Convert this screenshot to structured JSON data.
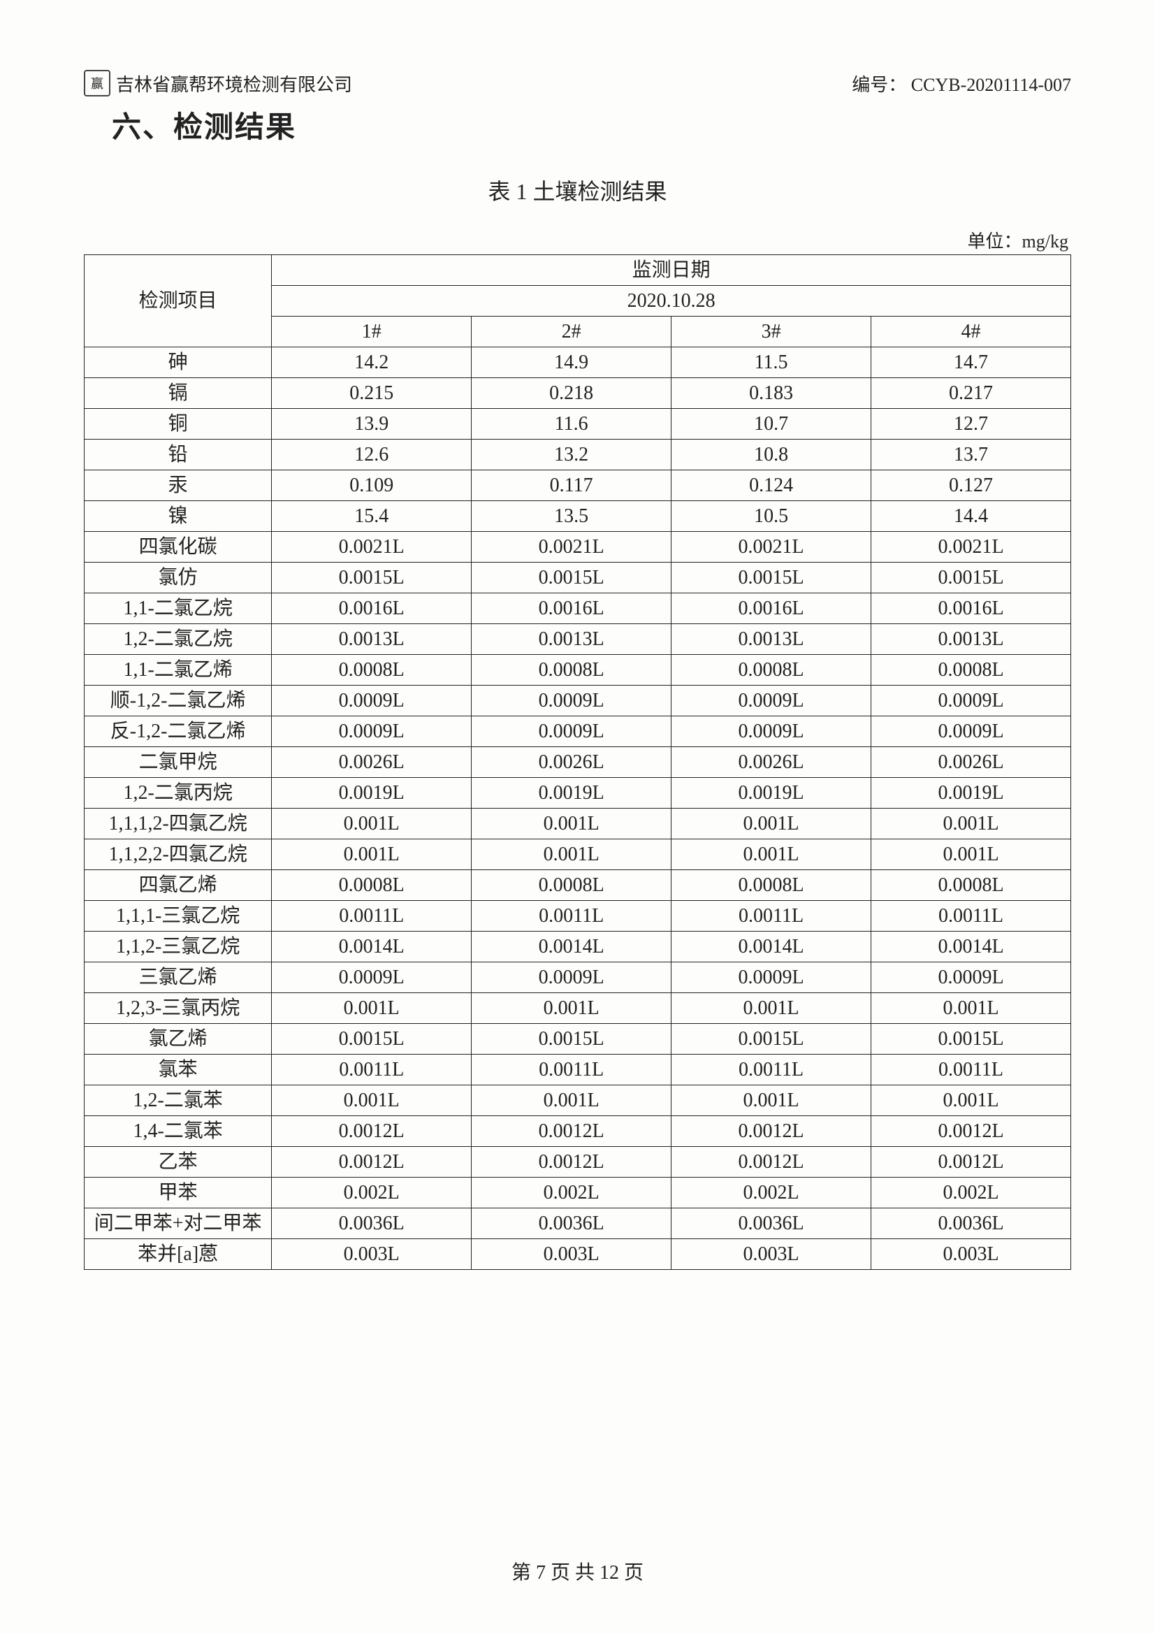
{
  "header": {
    "logo_char": "赢",
    "company": "吉林省赢帮环境检测有限公司",
    "doc_no_label": "编号：",
    "doc_no": "CCYB-20201114-007"
  },
  "section_title": "六、检测结果",
  "table_caption": "表 1 土壤检测结果",
  "unit_label": "单位：mg/kg",
  "table": {
    "project_header": "检测项目",
    "date_header": "监测日期",
    "date_value": "2020.10.28",
    "sample_headers": [
      "1#",
      "2#",
      "3#",
      "4#"
    ],
    "rows": [
      {
        "name": "砷",
        "v": [
          "14.2",
          "14.9",
          "11.5",
          "14.7"
        ]
      },
      {
        "name": "镉",
        "v": [
          "0.215",
          "0.218",
          "0.183",
          "0.217"
        ]
      },
      {
        "name": "铜",
        "v": [
          "13.9",
          "11.6",
          "10.7",
          "12.7"
        ]
      },
      {
        "name": "铅",
        "v": [
          "12.6",
          "13.2",
          "10.8",
          "13.7"
        ]
      },
      {
        "name": "汞",
        "v": [
          "0.109",
          "0.117",
          "0.124",
          "0.127"
        ]
      },
      {
        "name": "镍",
        "v": [
          "15.4",
          "13.5",
          "10.5",
          "14.4"
        ]
      },
      {
        "name": "四氯化碳",
        "v": [
          "0.0021L",
          "0.0021L",
          "0.0021L",
          "0.0021L"
        ]
      },
      {
        "name": "氯仿",
        "v": [
          "0.0015L",
          "0.0015L",
          "0.0015L",
          "0.0015L"
        ]
      },
      {
        "name": "1,1-二氯乙烷",
        "v": [
          "0.0016L",
          "0.0016L",
          "0.0016L",
          "0.0016L"
        ]
      },
      {
        "name": "1,2-二氯乙烷",
        "v": [
          "0.0013L",
          "0.0013L",
          "0.0013L",
          "0.0013L"
        ]
      },
      {
        "name": "1,1-二氯乙烯",
        "v": [
          "0.0008L",
          "0.0008L",
          "0.0008L",
          "0.0008L"
        ]
      },
      {
        "name": "顺-1,2-二氯乙烯",
        "v": [
          "0.0009L",
          "0.0009L",
          "0.0009L",
          "0.0009L"
        ]
      },
      {
        "name": "反-1,2-二氯乙烯",
        "v": [
          "0.0009L",
          "0.0009L",
          "0.0009L",
          "0.0009L"
        ]
      },
      {
        "name": "二氯甲烷",
        "v": [
          "0.0026L",
          "0.0026L",
          "0.0026L",
          "0.0026L"
        ]
      },
      {
        "name": "1,2-二氯丙烷",
        "v": [
          "0.0019L",
          "0.0019L",
          "0.0019L",
          "0.0019L"
        ]
      },
      {
        "name": "1,1,1,2-四氯乙烷",
        "v": [
          "0.001L",
          "0.001L",
          "0.001L",
          "0.001L"
        ]
      },
      {
        "name": "1,1,2,2-四氯乙烷",
        "v": [
          "0.001L",
          "0.001L",
          "0.001L",
          "0.001L"
        ]
      },
      {
        "name": "四氯乙烯",
        "v": [
          "0.0008L",
          "0.0008L",
          "0.0008L",
          "0.0008L"
        ]
      },
      {
        "name": "1,1,1-三氯乙烷",
        "v": [
          "0.0011L",
          "0.0011L",
          "0.0011L",
          "0.0011L"
        ]
      },
      {
        "name": "1,1,2-三氯乙烷",
        "v": [
          "0.0014L",
          "0.0014L",
          "0.0014L",
          "0.0014L"
        ]
      },
      {
        "name": "三氯乙烯",
        "v": [
          "0.0009L",
          "0.0009L",
          "0.0009L",
          "0.0009L"
        ]
      },
      {
        "name": "1,2,3-三氯丙烷",
        "v": [
          "0.001L",
          "0.001L",
          "0.001L",
          "0.001L"
        ]
      },
      {
        "name": "氯乙烯",
        "v": [
          "0.0015L",
          "0.0015L",
          "0.0015L",
          "0.0015L"
        ]
      },
      {
        "name": "氯苯",
        "v": [
          "0.0011L",
          "0.0011L",
          "0.0011L",
          "0.0011L"
        ]
      },
      {
        "name": "1,2-二氯苯",
        "v": [
          "0.001L",
          "0.001L",
          "0.001L",
          "0.001L"
        ]
      },
      {
        "name": "1,4-二氯苯",
        "v": [
          "0.0012L",
          "0.0012L",
          "0.0012L",
          "0.0012L"
        ]
      },
      {
        "name": "乙苯",
        "v": [
          "0.0012L",
          "0.0012L",
          "0.0012L",
          "0.0012L"
        ]
      },
      {
        "name": "甲苯",
        "v": [
          "0.002L",
          "0.002L",
          "0.002L",
          "0.002L"
        ]
      },
      {
        "name": "间二甲苯+对二甲苯",
        "v": [
          "0.0036L",
          "0.0036L",
          "0.0036L",
          "0.0036L"
        ]
      },
      {
        "name": "苯并[a]蒽",
        "v": [
          "0.003L",
          "0.003L",
          "0.003L",
          "0.003L"
        ]
      }
    ]
  },
  "footer": {
    "prefix": "第",
    "page": "7",
    "mid": "页 共",
    "total": "12",
    "suffix": "页"
  }
}
